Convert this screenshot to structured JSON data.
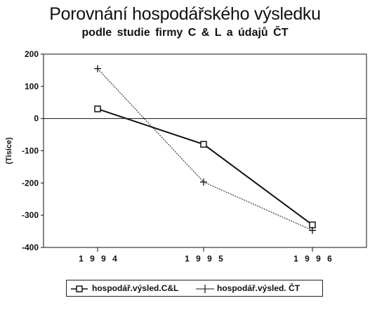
{
  "chart_data": {
    "type": "line",
    "title": "Porovnání hospodářského výsledku",
    "subtitle": "podle studie firmy  C & L  a  údajů  ČT",
    "ylabel": "(Tisíce)",
    "xlabel": "",
    "categories": [
      "1994",
      "1995",
      "1996"
    ],
    "x_tick_labels": [
      "1 9 9 4",
      "1 9 9 5",
      "1 9 9 6"
    ],
    "ylim": [
      -400,
      200
    ],
    "yticks": [
      200,
      100,
      0,
      -100,
      -200,
      -300,
      -400
    ],
    "grid": false,
    "legend_position": "bottom",
    "series": [
      {
        "name": "hospodář.výsled.C&L",
        "values": [
          30,
          -80,
          -330
        ],
        "marker": "square"
      },
      {
        "name": "hospodář.výsled. ČT",
        "values": [
          155,
          -197,
          -347
        ],
        "marker": "plus"
      }
    ]
  }
}
